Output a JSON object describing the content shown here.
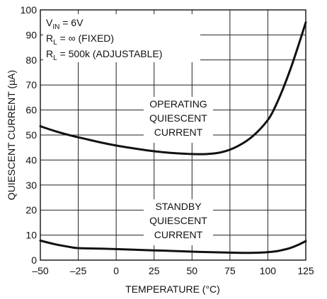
{
  "chart_data": {
    "type": "line",
    "xlabel": "TEMPERATURE (°C)",
    "ylabel": "QUIESCENT CURRENT (µA)",
    "xlim": [
      -50,
      125
    ],
    "ylim": [
      0,
      100
    ],
    "x_ticks": [
      -50,
      -25,
      0,
      25,
      50,
      75,
      100,
      125
    ],
    "x_tick_labels": [
      "–50",
      "–25",
      "0",
      "25",
      "50",
      "75",
      "100",
      "125"
    ],
    "y_ticks": [
      0,
      10,
      20,
      30,
      40,
      50,
      60,
      70,
      80,
      90,
      100
    ],
    "y_tick_labels": [
      "0",
      "10",
      "20",
      "30",
      "40",
      "50",
      "60",
      "70",
      "80",
      "90",
      "100"
    ],
    "grid": true,
    "conditions": {
      "vin": {
        "main": "V",
        "sub": "IN",
        "rest": " = 6V"
      },
      "rl_fixed": {
        "main": "R",
        "sub": "L",
        "rest": " = ∞ (FIXED)"
      },
      "rl_adjustable": {
        "main": "R",
        "sub": "L",
        "rest": " = 500k (ADJUSTABLE)"
      }
    },
    "series": [
      {
        "name": "OPERATING QUIESCENT CURRENT",
        "label_lines": [
          "OPERATING",
          "QUIESCENT",
          "CURRENT"
        ],
        "x": [
          -50,
          -40,
          -30,
          -20,
          -10,
          0,
          10,
          20,
          30,
          40,
          50,
          60,
          70,
          80,
          90,
          100,
          105,
          110,
          115,
          120,
          125
        ],
        "y": [
          53.5,
          51.5,
          49.8,
          48.4,
          47,
          45.8,
          44.8,
          43.9,
          43.2,
          42.7,
          42.4,
          42.4,
          43.2,
          45.5,
          49.5,
          56,
          61.5,
          68.5,
          76.5,
          85.5,
          95
        ]
      },
      {
        "name": "STANDBY QUIESCENT CURRENT",
        "label_lines": [
          "STANDBY",
          "QUIESCENT",
          "CURRENT"
        ],
        "x": [
          -50,
          -40,
          -30,
          -25,
          -10,
          0,
          10,
          25,
          40,
          50,
          60,
          75,
          85,
          95,
          105,
          110,
          115,
          120,
          125
        ],
        "y": [
          7.8,
          6.3,
          5.2,
          4.8,
          4.6,
          4.4,
          4.2,
          3.9,
          3.6,
          3.4,
          3.2,
          3,
          2.9,
          3,
          3.5,
          4.1,
          4.9,
          6.1,
          7.6
        ]
      }
    ]
  }
}
